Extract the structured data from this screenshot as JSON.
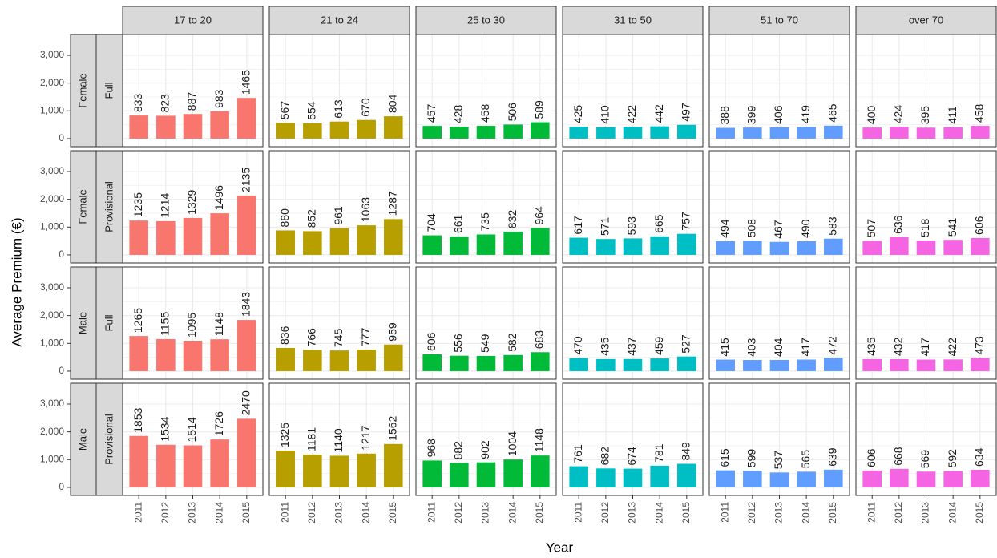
{
  "chart_data": {
    "type": "bar",
    "y_label": "Average Premium (€)",
    "x_label": "Year",
    "categories": [
      "2011",
      "2012",
      "2013",
      "2014",
      "2015"
    ],
    "ylim": [
      -290,
      3750
    ],
    "yticks": [
      0,
      {
        "value": 1000,
        "label": "1,000"
      },
      {
        "value": 2000,
        "label": "2,000"
      },
      {
        "value": 3000,
        "label": "3,000"
      }
    ],
    "grid": true,
    "columns": [
      {
        "label": "17 to 20",
        "color": "#F8766D"
      },
      {
        "label": "21 to 24",
        "color": "#B79F00"
      },
      {
        "label": "25 to 30",
        "color": "#00BA38"
      },
      {
        "label": "31 to 50",
        "color": "#00BFC4"
      },
      {
        "label": "51 to 70",
        "color": "#619CFF"
      },
      {
        "label": "over 70",
        "color": "#F564E3"
      }
    ],
    "rows": [
      {
        "gender": "Female",
        "license": "Full",
        "panels": [
          {
            "values": [
              833,
              823,
              887,
              983,
              1465
            ]
          },
          {
            "values": [
              567,
              554,
              613,
              670,
              804
            ]
          },
          {
            "values": [
              457,
              428,
              458,
              506,
              589
            ]
          },
          {
            "values": [
              425,
              410,
              422,
              442,
              497
            ]
          },
          {
            "values": [
              388,
              399,
              406,
              419,
              465
            ]
          },
          {
            "values": [
              400,
              424,
              395,
              411,
              458
            ]
          }
        ]
      },
      {
        "gender": "Female",
        "license": "Provisional",
        "panels": [
          {
            "values": [
              1235,
              1214,
              1329,
              1496,
              2135
            ]
          },
          {
            "values": [
              880,
              852,
              961,
              1063,
              1287
            ]
          },
          {
            "values": [
              704,
              661,
              735,
              832,
              964
            ]
          },
          {
            "values": [
              617,
              571,
              593,
              665,
              757
            ]
          },
          {
            "values": [
              494,
              508,
              467,
              490,
              583
            ]
          },
          {
            "values": [
              507,
              636,
              518,
              541,
              606
            ]
          }
        ]
      },
      {
        "gender": "Male",
        "license": "Full",
        "panels": [
          {
            "values": [
              1265,
              1155,
              1095,
              1148,
              1843
            ]
          },
          {
            "values": [
              836,
              766,
              745,
              777,
              959
            ]
          },
          {
            "values": [
              606,
              556,
              549,
              582,
              683
            ]
          },
          {
            "values": [
              470,
              435,
              437,
              459,
              527
            ]
          },
          {
            "values": [
              415,
              403,
              404,
              417,
              472
            ]
          },
          {
            "values": [
              435,
              432,
              417,
              422,
              473
            ]
          }
        ]
      },
      {
        "gender": "Male",
        "license": "Provisional",
        "panels": [
          {
            "values": [
              1853,
              1534,
              1514,
              1726,
              2470
            ]
          },
          {
            "values": [
              1325,
              1181,
              1140,
              1217,
              1562
            ]
          },
          {
            "values": [
              968,
              882,
              902,
              1004,
              1148
            ]
          },
          {
            "values": [
              761,
              682,
              674,
              781,
              849
            ]
          },
          {
            "values": [
              615,
              599,
              537,
              565,
              639
            ]
          },
          {
            "values": [
              606,
              668,
              569,
              592,
              634
            ]
          }
        ]
      }
    ]
  }
}
